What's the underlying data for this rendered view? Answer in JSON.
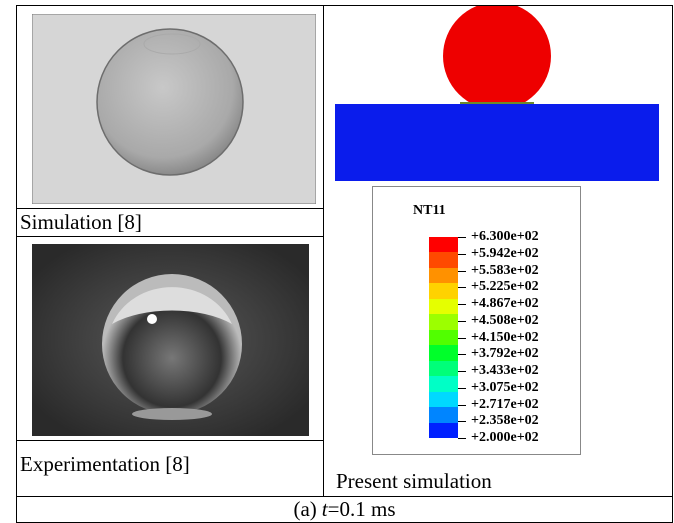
{
  "left": {
    "top_label": "Simulation [8]",
    "bottom_label": "Experimentation [8]"
  },
  "right": {
    "label": "Present simulation"
  },
  "legend": {
    "title": "NT11",
    "labels": [
      "+6.300e+02",
      "+5.942e+02",
      "+5.583e+02",
      "+5.225e+02",
      "+4.867e+02",
      "+4.508e+02",
      "+4.150e+02",
      "+3.792e+02",
      "+3.433e+02",
      "+3.075e+02",
      "+2.717e+02",
      "+2.358e+02",
      "+2.000e+02"
    ],
    "colors": [
      "#ff0000",
      "#ff4a00",
      "#ff9100",
      "#ffd200",
      "#e5ff00",
      "#9cff00",
      "#51ff00",
      "#00ff2a",
      "#00ff79",
      "#00ffc6",
      "#00d9ff",
      "#0085ff",
      "#0020ff"
    ]
  },
  "caption": {
    "prefix": "(a)",
    "variable": "t",
    "rest": "=0.1 ms"
  }
}
